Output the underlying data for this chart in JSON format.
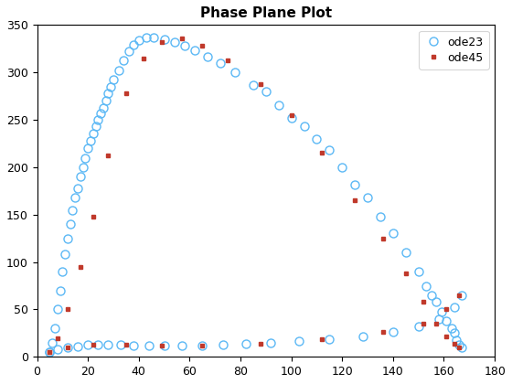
{
  "title": "Phase Plane Plot",
  "xlim": [
    0,
    180
  ],
  "ylim": [
    0,
    350
  ],
  "xticks": [
    0,
    20,
    40,
    60,
    80,
    100,
    120,
    140,
    160,
    180
  ],
  "yticks": [
    0,
    50,
    100,
    150,
    200,
    250,
    300,
    350
  ],
  "ode23_color": "#5BB8F5",
  "ode45_color": "#C0392B",
  "background_color": "#ffffff",
  "ode23_x": [
    5,
    6,
    7,
    8,
    9,
    10,
    11,
    12,
    13,
    14,
    15,
    16,
    17,
    18,
    19,
    20,
    21,
    22,
    23,
    24,
    25,
    26,
    27,
    28,
    29,
    30,
    32,
    34,
    36,
    38,
    40,
    43,
    46,
    50,
    54,
    58,
    62,
    67,
    72,
    78,
    85,
    90,
    95,
    100,
    105,
    110,
    115,
    120,
    125,
    130,
    135,
    140,
    145,
    150,
    153,
    155,
    157,
    159,
    161,
    163,
    164,
    165,
    166,
    167
  ],
  "ode23_y": [
    5,
    15,
    30,
    50,
    70,
    90,
    108,
    125,
    140,
    155,
    168,
    178,
    190,
    200,
    210,
    220,
    228,
    236,
    243,
    250,
    257,
    263,
    270,
    278,
    285,
    292,
    302,
    313,
    322,
    329,
    334,
    337,
    337,
    335,
    332,
    328,
    323,
    317,
    310,
    300,
    287,
    280,
    265,
    252,
    243,
    230,
    218,
    200,
    182,
    168,
    148,
    130,
    110,
    90,
    75,
    65,
    58,
    48,
    38,
    30,
    25,
    18,
    13,
    10
  ],
  "ode23_bottom_x": [
    5,
    8,
    12,
    16,
    20,
    24,
    28,
    33,
    38,
    44,
    50,
    57,
    65,
    73,
    82,
    92,
    103,
    115,
    128,
    140,
    150,
    158,
    164,
    167
  ],
  "ode23_bottom_y": [
    5,
    8,
    10,
    11,
    13,
    13,
    13,
    13,
    12,
    12,
    12,
    12,
    12,
    13,
    14,
    15,
    17,
    19,
    22,
    26,
    32,
    40,
    52,
    65
  ],
  "ode45_x": [
    5,
    8,
    12,
    17,
    22,
    28,
    35,
    42,
    49,
    57,
    65,
    75,
    88,
    100,
    112,
    125,
    136,
    145,
    152,
    157,
    161,
    164,
    166
  ],
  "ode45_y": [
    5,
    20,
    50,
    95,
    148,
    212,
    278,
    315,
    332,
    336,
    328,
    313,
    288,
    255,
    215,
    165,
    125,
    88,
    58,
    35,
    22,
    14,
    10
  ],
  "ode45_bottom_x": [
    5,
    12,
    22,
    35,
    49,
    65,
    88,
    112,
    136,
    152,
    161,
    166
  ],
  "ode45_bottom_y": [
    5,
    10,
    13,
    13,
    12,
    12,
    14,
    19,
    26,
    35,
    50,
    65
  ]
}
